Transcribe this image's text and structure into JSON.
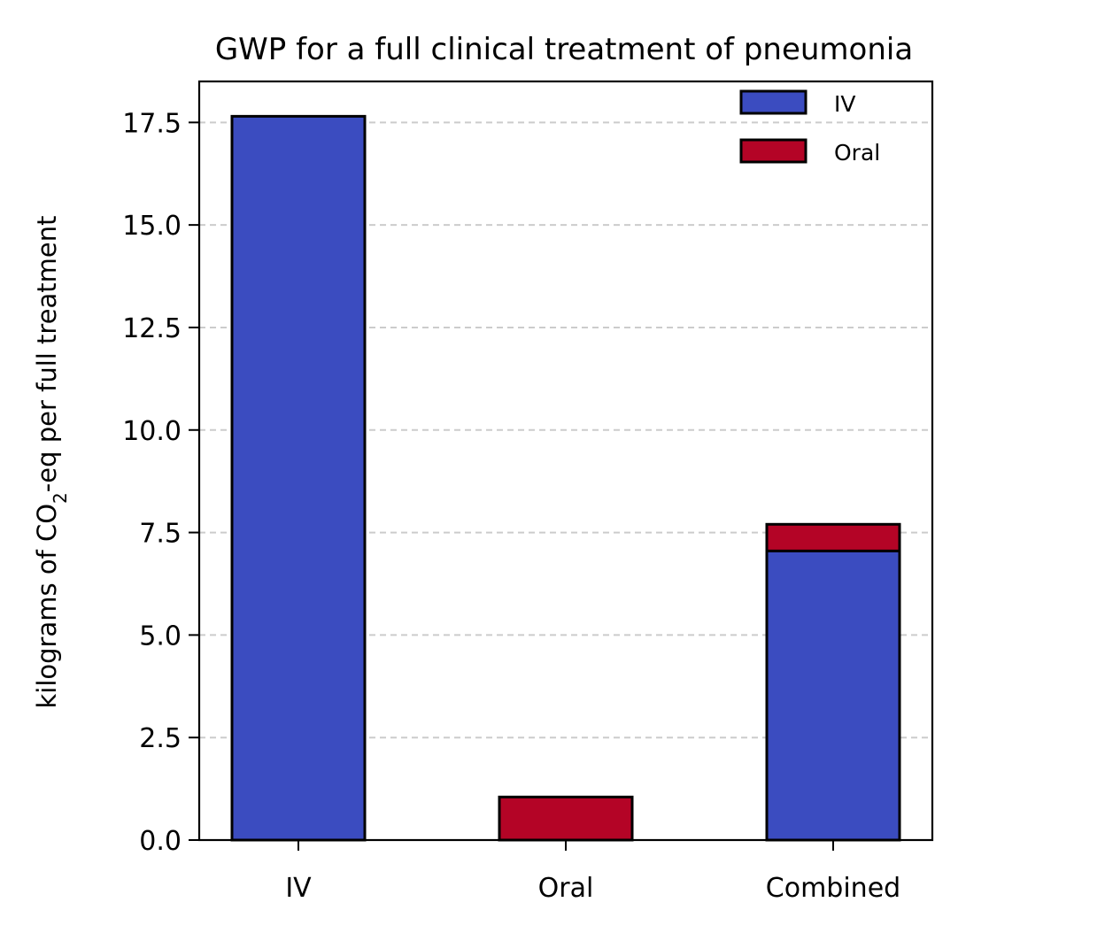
{
  "chart_data": {
    "type": "bar",
    "stacked": true,
    "title": "GWP for a full clinical treatment of pneumonia",
    "xlabel": "",
    "ylabel": {
      "prefix": "kilograms of CO",
      "subscript": "2",
      "suffix": "-eq per full treatment"
    },
    "categories": [
      "IV",
      "Oral",
      "Combined"
    ],
    "series": [
      {
        "name": "IV",
        "color": "#3b4cc0",
        "values": [
          17.65,
          0,
          7.05
        ]
      },
      {
        "name": "Oral",
        "color": "#b40426",
        "values": [
          0,
          1.05,
          0.65
        ]
      }
    ],
    "ylim": [
      0,
      18.5
    ],
    "yticks": [
      "0.0",
      "2.5",
      "5.0",
      "7.5",
      "10.0",
      "12.5",
      "15.0",
      "17.5"
    ],
    "grid": "y-dashed",
    "legend_position": "top-right"
  }
}
